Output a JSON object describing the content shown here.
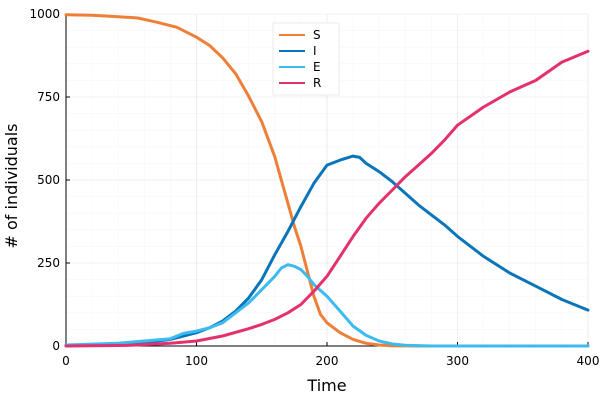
{
  "chart_data": {
    "type": "line",
    "title": "",
    "xlabel": "Time",
    "ylabel": "# of individuals",
    "xlim": [
      0,
      400
    ],
    "ylim": [
      0,
      1000
    ],
    "xticks": [
      0,
      100,
      200,
      300,
      400
    ],
    "yticks": [
      0,
      250,
      500,
      750,
      1000
    ],
    "grid": true,
    "legend_position": "top-center",
    "series": [
      {
        "name": "S",
        "color": "#ef7f38",
        "x": [
          0,
          20,
          40,
          55,
          70,
          85,
          100,
          110,
          120,
          130,
          140,
          150,
          160,
          165,
          170,
          175,
          180,
          185,
          190,
          195,
          200,
          210,
          220,
          230,
          240,
          250,
          270,
          300,
          350,
          400
        ],
        "y": [
          998,
          996,
          992,
          988,
          975,
          960,
          930,
          905,
          868,
          820,
          752,
          675,
          570,
          500,
          430,
          360,
          300,
          225,
          150,
          95,
          70,
          40,
          20,
          8,
          3,
          1,
          0,
          0,
          0,
          0
        ]
      },
      {
        "name": "I",
        "color": "#0a76b9",
        "x": [
          0,
          40,
          60,
          80,
          100,
          110,
          120,
          130,
          140,
          150,
          160,
          170,
          180,
          190,
          200,
          210,
          220,
          225,
          230,
          240,
          250,
          260,
          270,
          280,
          290,
          300,
          320,
          340,
          360,
          380,
          400
        ],
        "y": [
          2,
          5,
          10,
          20,
          40,
          55,
          75,
          105,
          145,
          200,
          275,
          345,
          420,
          490,
          545,
          560,
          572,
          568,
          550,
          525,
          495,
          460,
          425,
          395,
          365,
          330,
          270,
          220,
          180,
          140,
          108
        ]
      },
      {
        "name": "E",
        "color": "#3dbbf0",
        "x": [
          0,
          40,
          60,
          80,
          90,
          100,
          110,
          120,
          130,
          140,
          150,
          160,
          165,
          170,
          175,
          180,
          185,
          190,
          200,
          210,
          220,
          230,
          240,
          250,
          260,
          280,
          300,
          400
        ],
        "y": [
          3,
          8,
          15,
          22,
          38,
          45,
          55,
          70,
          100,
          130,
          170,
          210,
          235,
          245,
          240,
          230,
          210,
          185,
          150,
          105,
          60,
          32,
          15,
          6,
          2,
          0,
          0,
          0
        ]
      },
      {
        "name": "R",
        "color": "#e5306f",
        "x": [
          0,
          50,
          80,
          100,
          120,
          140,
          150,
          160,
          170,
          180,
          190,
          200,
          210,
          220,
          230,
          240,
          250,
          260,
          270,
          280,
          290,
          300,
          320,
          340,
          360,
          380,
          400
        ],
        "y": [
          0,
          2,
          8,
          15,
          30,
          52,
          65,
          80,
          100,
          125,
          165,
          210,
          270,
          330,
          385,
          430,
          470,
          510,
          545,
          580,
          620,
          665,
          720,
          765,
          800,
          855,
          888
        ]
      }
    ]
  }
}
